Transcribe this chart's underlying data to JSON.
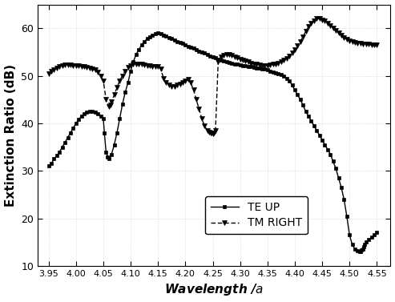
{
  "title": "",
  "xlabel": "Wavelength /a",
  "ylabel": "Extinction Ratio (dB)",
  "xlim": [
    3.93,
    4.575
  ],
  "ylim": [
    10,
    65
  ],
  "yticks": [
    10,
    20,
    30,
    40,
    50,
    60
  ],
  "xticks": [
    3.95,
    4.0,
    4.05,
    4.1,
    4.15,
    4.2,
    4.25,
    4.3,
    4.35,
    4.4,
    4.45,
    4.5,
    4.55
  ],
  "TE_UP_x": [
    3.95,
    3.955,
    3.96,
    3.965,
    3.97,
    3.975,
    3.98,
    3.985,
    3.99,
    3.995,
    4.0,
    4.005,
    4.01,
    4.015,
    4.02,
    4.025,
    4.03,
    4.035,
    4.04,
    4.045,
    4.05,
    4.052,
    4.055,
    4.058,
    4.06,
    4.065,
    4.07,
    4.075,
    4.08,
    4.085,
    4.09,
    4.095,
    4.1,
    4.105,
    4.11,
    4.115,
    4.12,
    4.125,
    4.13,
    4.135,
    4.14,
    4.145,
    4.15,
    4.155,
    4.16,
    4.165,
    4.17,
    4.175,
    4.18,
    4.185,
    4.19,
    4.195,
    4.2,
    4.205,
    4.21,
    4.215,
    4.22,
    4.225,
    4.23,
    4.235,
    4.24,
    4.245,
    4.25,
    4.255,
    4.26,
    4.265,
    4.27,
    4.275,
    4.28,
    4.285,
    4.29,
    4.295,
    4.3,
    4.305,
    4.31,
    4.315,
    4.32,
    4.325,
    4.33,
    4.335,
    4.34,
    4.345,
    4.35,
    4.355,
    4.36,
    4.365,
    4.37,
    4.375,
    4.38,
    4.385,
    4.39,
    4.395,
    4.4,
    4.405,
    4.41,
    4.415,
    4.42,
    4.425,
    4.43,
    4.435,
    4.44,
    4.445,
    4.45,
    4.455,
    4.46,
    4.465,
    4.47,
    4.475,
    4.48,
    4.485,
    4.49,
    4.495,
    4.5,
    4.505,
    4.51,
    4.515,
    4.518,
    4.52,
    4.522,
    4.524,
    4.526,
    4.528,
    4.53,
    4.535,
    4.54,
    4.545,
    4.55
  ],
  "TE_UP_y": [
    31.0,
    31.5,
    32.5,
    33.2,
    34.0,
    35.0,
    36.0,
    37.0,
    38.0,
    39.0,
    40.0,
    40.8,
    41.5,
    42.0,
    42.3,
    42.5,
    42.5,
    42.3,
    42.0,
    41.5,
    41.0,
    38.0,
    34.0,
    33.0,
    32.5,
    33.5,
    35.5,
    38.0,
    41.0,
    44.0,
    46.5,
    48.5,
    51.0,
    53.0,
    54.5,
    55.5,
    56.5,
    57.2,
    57.8,
    58.2,
    58.5,
    58.8,
    59.0,
    58.8,
    58.5,
    58.3,
    58.0,
    57.8,
    57.5,
    57.2,
    57.0,
    56.8,
    56.5,
    56.2,
    56.0,
    55.8,
    55.5,
    55.2,
    55.0,
    54.8,
    54.5,
    54.2,
    54.0,
    53.8,
    53.5,
    53.3,
    53.1,
    52.9,
    52.8,
    52.6,
    52.5,
    52.4,
    52.3,
    52.2,
    52.1,
    52.0,
    51.9,
    51.8,
    51.7,
    51.6,
    51.5,
    51.4,
    51.2,
    51.0,
    50.8,
    50.6,
    50.4,
    50.2,
    50.0,
    49.5,
    49.0,
    48.0,
    47.0,
    46.0,
    45.0,
    43.8,
    42.5,
    41.5,
    40.5,
    39.5,
    38.5,
    37.5,
    36.5,
    35.5,
    34.5,
    33.5,
    32.0,
    30.5,
    28.5,
    26.5,
    24.0,
    20.5,
    16.5,
    14.5,
    13.5,
    13.2,
    13.0,
    13.1,
    13.3,
    13.6,
    14.0,
    14.5,
    15.0,
    15.5,
    16.0,
    16.5,
    17.0
  ],
  "TM_RIGHT_x": [
    3.95,
    3.955,
    3.96,
    3.965,
    3.97,
    3.975,
    3.98,
    3.985,
    3.99,
    3.995,
    4.0,
    4.005,
    4.01,
    4.015,
    4.02,
    4.025,
    4.03,
    4.035,
    4.04,
    4.045,
    4.05,
    4.055,
    4.06,
    4.063,
    4.065,
    4.07,
    4.075,
    4.08,
    4.085,
    4.09,
    4.095,
    4.1,
    4.105,
    4.11,
    4.115,
    4.12,
    4.125,
    4.13,
    4.135,
    4.14,
    4.145,
    4.15,
    4.155,
    4.16,
    4.165,
    4.17,
    4.175,
    4.18,
    4.185,
    4.19,
    4.195,
    4.2,
    4.205,
    4.21,
    4.215,
    4.22,
    4.225,
    4.23,
    4.235,
    4.24,
    4.243,
    4.246,
    4.248,
    4.25,
    4.252,
    4.255,
    4.26,
    4.265,
    4.27,
    4.275,
    4.28,
    4.285,
    4.29,
    4.295,
    4.3,
    4.305,
    4.31,
    4.315,
    4.32,
    4.325,
    4.33,
    4.335,
    4.34,
    4.345,
    4.35,
    4.355,
    4.36,
    4.365,
    4.37,
    4.375,
    4.38,
    4.385,
    4.39,
    4.395,
    4.4,
    4.405,
    4.41,
    4.415,
    4.42,
    4.425,
    4.43,
    4.435,
    4.44,
    4.445,
    4.45,
    4.455,
    4.46,
    4.465,
    4.47,
    4.475,
    4.48,
    4.485,
    4.49,
    4.495,
    4.5,
    4.505,
    4.51,
    4.515,
    4.52,
    4.525,
    4.53,
    4.535,
    4.54,
    4.545,
    4.55
  ],
  "TM_RIGHT_y": [
    50.5,
    51.0,
    51.3,
    51.6,
    52.0,
    52.2,
    52.3,
    52.3,
    52.3,
    52.2,
    52.2,
    52.1,
    52.0,
    51.9,
    51.8,
    51.7,
    51.5,
    51.2,
    50.8,
    50.0,
    49.0,
    45.0,
    43.5,
    43.8,
    44.5,
    46.0,
    47.5,
    49.0,
    50.0,
    51.0,
    51.8,
    52.2,
    52.5,
    52.5,
    52.5,
    52.4,
    52.3,
    52.2,
    52.1,
    52.0,
    52.0,
    52.0,
    51.5,
    49.5,
    48.5,
    48.0,
    47.8,
    47.8,
    48.0,
    48.2,
    48.5,
    49.0,
    49.2,
    48.5,
    47.0,
    45.0,
    43.0,
    41.0,
    39.5,
    38.5,
    38.2,
    38.0,
    37.9,
    37.8,
    38.0,
    38.5,
    53.0,
    54.0,
    54.3,
    54.5,
    54.5,
    54.3,
    54.0,
    53.8,
    53.5,
    53.3,
    53.1,
    52.9,
    52.7,
    52.5,
    52.4,
    52.3,
    52.2,
    52.2,
    52.2,
    52.3,
    52.4,
    52.5,
    52.7,
    53.0,
    53.3,
    53.7,
    54.2,
    54.8,
    55.5,
    56.3,
    57.2,
    58.2,
    59.3,
    60.3,
    61.0,
    61.5,
    62.0,
    62.0,
    61.8,
    61.5,
    61.0,
    60.5,
    60.0,
    59.5,
    59.0,
    58.5,
    58.0,
    57.7,
    57.4,
    57.2,
    57.0,
    56.9,
    56.8,
    56.7,
    56.6,
    56.6,
    56.5,
    56.5,
    56.5
  ],
  "line_color": "#000000",
  "bg_color": "#ffffff",
  "fontsize_label": 11,
  "fontsize_tick": 9,
  "fontsize_legend": 10
}
